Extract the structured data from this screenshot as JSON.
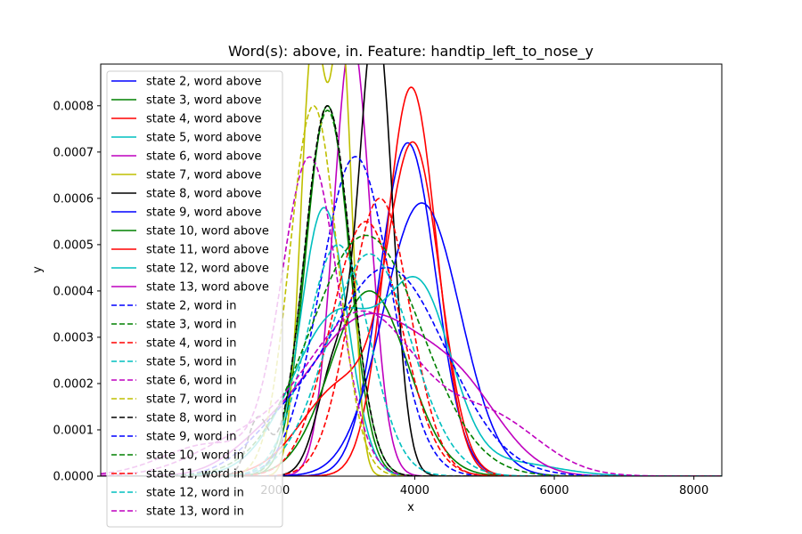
{
  "chart_data": {
    "type": "line",
    "title": "Word(s): above, in. Feature: handtip_left_to_nose_y",
    "xlabel": "x",
    "ylabel": "y",
    "xlim": [
      -500,
      8400
    ],
    "ylim": [
      0,
      0.00089
    ],
    "x_ticks": [
      2000,
      4000,
      6000,
      8000
    ],
    "x_tick_labels": [
      "2000",
      "4000",
      "6000",
      "8000"
    ],
    "y_ticks": [
      0,
      0.0001,
      0.0002,
      0.0003,
      0.0004,
      0.0005,
      0.0006,
      0.0007,
      0.0008
    ],
    "y_tick_labels": [
      "0.0000",
      "0.0001",
      "0.0002",
      "0.0003",
      "0.0004",
      "0.0005",
      "0.0006",
      "0.0007",
      "0.0008"
    ],
    "grid": false,
    "legend_position": "upper-left",
    "series": [
      {
        "name": "state 2, word above",
        "color": "#0000ff",
        "dash": "solid",
        "components": [
          [
            3900,
            400,
            0.00072
          ]
        ]
      },
      {
        "name": "state 3, word above",
        "color": "#008000",
        "dash": "solid",
        "components": [
          [
            2750,
            310,
            0.0008
          ]
        ]
      },
      {
        "name": "state 4, word above",
        "color": "#ff0000",
        "dash": "solid",
        "components": [
          [
            3950,
            360,
            0.00084
          ]
        ]
      },
      {
        "name": "state 5, word above",
        "color": "#00bfbf",
        "dash": "solid",
        "components": [
          [
            2700,
            330,
            0.00058
          ]
        ]
      },
      {
        "name": "state 6, word above",
        "color": "#bf00bf",
        "dash": "solid",
        "components": [
          [
            3100,
            260,
            0.00095
          ]
        ]
      },
      {
        "name": "state 7, word above",
        "color": "#bfbf00",
        "dash": "solid",
        "components": [
          [
            2550,
            180,
            0.00095
          ],
          [
            2960,
            150,
            0.0009
          ]
        ]
      },
      {
        "name": "state 8, word above",
        "color": "#000000",
        "dash": "solid",
        "components": [
          [
            3450,
            230,
            0.00098
          ],
          [
            2880,
            260,
            0.00025
          ]
        ]
      },
      {
        "name": "state 9, word above",
        "color": "#0000ff",
        "dash": "solid",
        "components": [
          [
            4100,
            550,
            0.00059
          ]
        ]
      },
      {
        "name": "state 10, word above",
        "color": "#008000",
        "dash": "solid",
        "components": [
          [
            3350,
            550,
            0.0004
          ]
        ]
      },
      {
        "name": "state 11, word above",
        "color": "#ff0000",
        "dash": "solid",
        "components": [
          [
            4000,
            370,
            0.00067
          ],
          [
            3000,
            600,
            0.0002
          ]
        ]
      },
      {
        "name": "state 12, word above",
        "color": "#00bfbf",
        "dash": "solid",
        "components": [
          [
            2900,
            650,
            0.00035
          ],
          [
            4100,
            450,
            0.00035
          ],
          [
            5300,
            700,
            3e-05
          ]
        ]
      },
      {
        "name": "state 13, word above",
        "color": "#bf00bf",
        "dash": "solid",
        "components": [
          [
            3300,
            850,
            0.00034
          ],
          [
            4700,
            600,
            0.00014
          ],
          [
            1800,
            500,
            4e-05
          ]
        ]
      },
      {
        "name": "state 2, word in",
        "color": "#0000ff",
        "dash": "dashed",
        "components": [
          [
            3150,
            500,
            0.00069
          ]
        ]
      },
      {
        "name": "state 3, word in",
        "color": "#008000",
        "dash": "dashed",
        "components": [
          [
            2750,
            330,
            0.00079
          ]
        ]
      },
      {
        "name": "state 4, word in",
        "color": "#ff0000",
        "dash": "dashed",
        "components": [
          [
            3500,
            430,
            0.0006
          ]
        ]
      },
      {
        "name": "state 5, word in",
        "color": "#00bfbf",
        "dash": "dashed",
        "components": [
          [
            2900,
            450,
            0.0005
          ]
        ]
      },
      {
        "name": "state 6, word in",
        "color": "#bf00bf",
        "dash": "dashed",
        "components": [
          [
            2500,
            400,
            0.00068
          ],
          [
            1100,
            700,
            7e-05
          ]
        ]
      },
      {
        "name": "state 7, word in",
        "color": "#bfbf00",
        "dash": "dashed",
        "components": [
          [
            2550,
            340,
            0.0008
          ]
        ]
      },
      {
        "name": "state 8, word in",
        "color": "#000000",
        "dash": "dashed",
        "components": [
          [
            2750,
            330,
            0.0008
          ],
          [
            1750,
            150,
            0.00012
          ]
        ]
      },
      {
        "name": "state 9, word in",
        "color": "#0000ff",
        "dash": "dashed",
        "components": [
          [
            3600,
            850,
            0.00045
          ],
          [
            2000,
            500,
            6e-05
          ]
        ]
      },
      {
        "name": "state 10, word in",
        "color": "#008000",
        "dash": "dashed",
        "components": [
          [
            3300,
            800,
            0.00052
          ]
        ]
      },
      {
        "name": "state 11, word in",
        "color": "#ff0000",
        "dash": "dashed",
        "components": [
          [
            3300,
            500,
            0.00055
          ]
        ]
      },
      {
        "name": "state 12, word in",
        "color": "#00bfbf",
        "dash": "dashed",
        "components": [
          [
            3350,
            600,
            0.00048
          ]
        ]
      },
      {
        "name": "state 13, word in",
        "color": "#bf00bf",
        "dash": "dashed",
        "components": [
          [
            3250,
            800,
            0.00035
          ],
          [
            5100,
            700,
            0.00012
          ],
          [
            1500,
            700,
            7e-05
          ]
        ]
      }
    ]
  }
}
